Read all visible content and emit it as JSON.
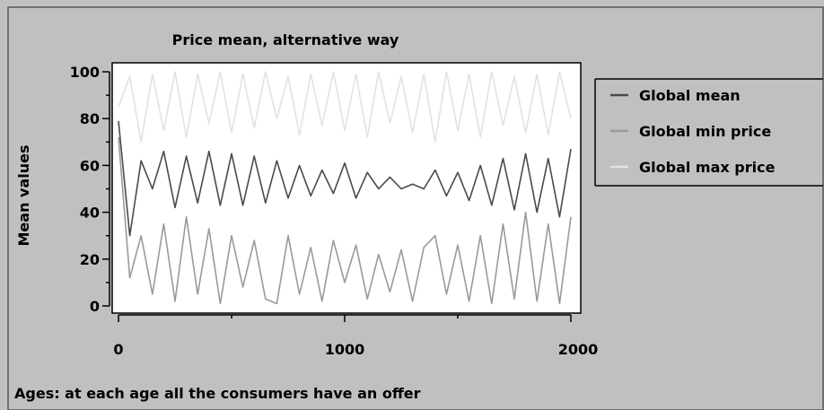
{
  "chart_data": {
    "type": "line",
    "title": "Price mean, alternative way",
    "xlabel": "Ages: at each age all the consumers have an offer",
    "ylabel": "Mean values",
    "xlim": [
      0,
      2000
    ],
    "ylim": [
      0,
      100
    ],
    "xticks": [
      0,
      1000,
      2000
    ],
    "yticks": [
      0,
      20,
      40,
      60,
      80,
      100
    ],
    "grid": false,
    "legend_position": "right",
    "series": [
      {
        "name": "Global mean",
        "color": "#4a4a4a",
        "x": [
          0,
          50,
          100,
          150,
          200,
          250,
          300,
          350,
          400,
          450,
          500,
          550,
          600,
          650,
          700,
          750,
          800,
          850,
          900,
          950,
          1000,
          1050,
          1100,
          1150,
          1200,
          1250,
          1300,
          1350,
          1400,
          1450,
          1500,
          1550,
          1600,
          1650,
          1700,
          1750,
          1800,
          1850,
          1900,
          1950,
          2000
        ],
        "y": [
          79,
          30,
          62,
          50,
          66,
          42,
          64,
          44,
          66,
          43,
          65,
          43,
          64,
          44,
          62,
          46,
          60,
          47,
          58,
          48,
          61,
          46,
          57,
          50,
          55,
          50,
          52,
          50,
          58,
          47,
          57,
          45,
          60,
          43,
          63,
          41,
          65,
          40,
          63,
          38,
          67
        ]
      },
      {
        "name": "Global min price",
        "color": "#9a9a9a",
        "x": [
          0,
          50,
          100,
          150,
          200,
          250,
          300,
          350,
          400,
          450,
          500,
          550,
          600,
          650,
          700,
          750,
          800,
          850,
          900,
          950,
          1000,
          1050,
          1100,
          1150,
          1200,
          1250,
          1300,
          1350,
          1400,
          1450,
          1500,
          1550,
          1600,
          1650,
          1700,
          1750,
          1800,
          1850,
          1900,
          1950,
          2000
        ],
        "y": [
          72,
          12,
          30,
          5,
          35,
          2,
          38,
          5,
          33,
          1,
          30,
          8,
          28,
          3,
          1,
          30,
          5,
          25,
          2,
          28,
          10,
          26,
          3,
          22,
          6,
          24,
          2,
          25,
          30,
          5,
          26,
          2,
          30,
          1,
          35,
          3,
          40,
          2,
          35,
          1,
          38
        ]
      },
      {
        "name": "Global max price",
        "color": "#e2e2e2",
        "x": [
          0,
          50,
          100,
          150,
          200,
          250,
          300,
          350,
          400,
          450,
          500,
          550,
          600,
          650,
          700,
          750,
          800,
          850,
          900,
          950,
          1000,
          1050,
          1100,
          1150,
          1200,
          1250,
          1300,
          1350,
          1400,
          1450,
          1500,
          1550,
          1600,
          1650,
          1700,
          1750,
          1800,
          1850,
          1900,
          1950,
          2000
        ],
        "y": [
          85,
          98,
          70,
          99,
          75,
          100,
          72,
          99,
          78,
          100,
          74,
          99,
          76,
          100,
          80,
          98,
          73,
          99,
          77,
          100,
          75,
          99,
          72,
          100,
          78,
          98,
          74,
          99,
          70,
          100,
          75,
          99,
          72,
          100,
          77,
          98,
          74,
          99,
          73,
          100,
          80
        ]
      }
    ]
  }
}
